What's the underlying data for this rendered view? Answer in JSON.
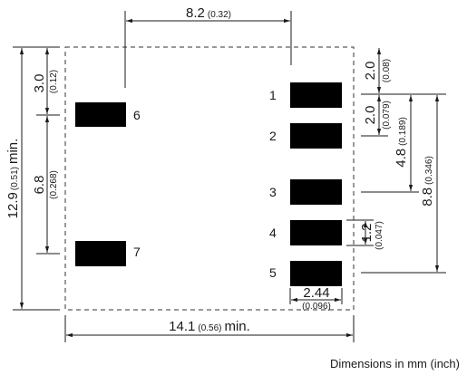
{
  "units_note": "Dimensions in mm (inch)",
  "pads_right": [
    {
      "label": "1"
    },
    {
      "label": "2"
    },
    {
      "label": "3"
    },
    {
      "label": "4"
    },
    {
      "label": "5"
    }
  ],
  "pads_left": [
    {
      "label": "6"
    },
    {
      "label": "7"
    }
  ],
  "dimensions": {
    "top_span": {
      "mm": "8.2",
      "inch": "(0.32)"
    },
    "bottom_width": {
      "mm": "14.1",
      "inch": "(0.56)",
      "suffix": "min."
    },
    "left_height": {
      "mm": "12.9",
      "inch": "(0.51)",
      "suffix": "min."
    },
    "left_top_gap": {
      "mm": "3.0",
      "inch": "(0.12)"
    },
    "left_pitch": {
      "mm": "6.8",
      "inch": "(0.268)"
    },
    "right_top_gap": {
      "mm": "2.0",
      "inch": "(0.08)"
    },
    "right_pitch": {
      "mm": "2.0",
      "inch": "(0.079)"
    },
    "right_span_1_3": {
      "mm": "4.8",
      "inch": "(0.189)"
    },
    "right_span_total": {
      "mm": "8.8",
      "inch": "(0.346)"
    },
    "pad_height": {
      "mm": "1.2",
      "inch": "(0.047)"
    },
    "pad_width": {
      "mm": "2.44",
      "inch": "(0.096)"
    }
  }
}
